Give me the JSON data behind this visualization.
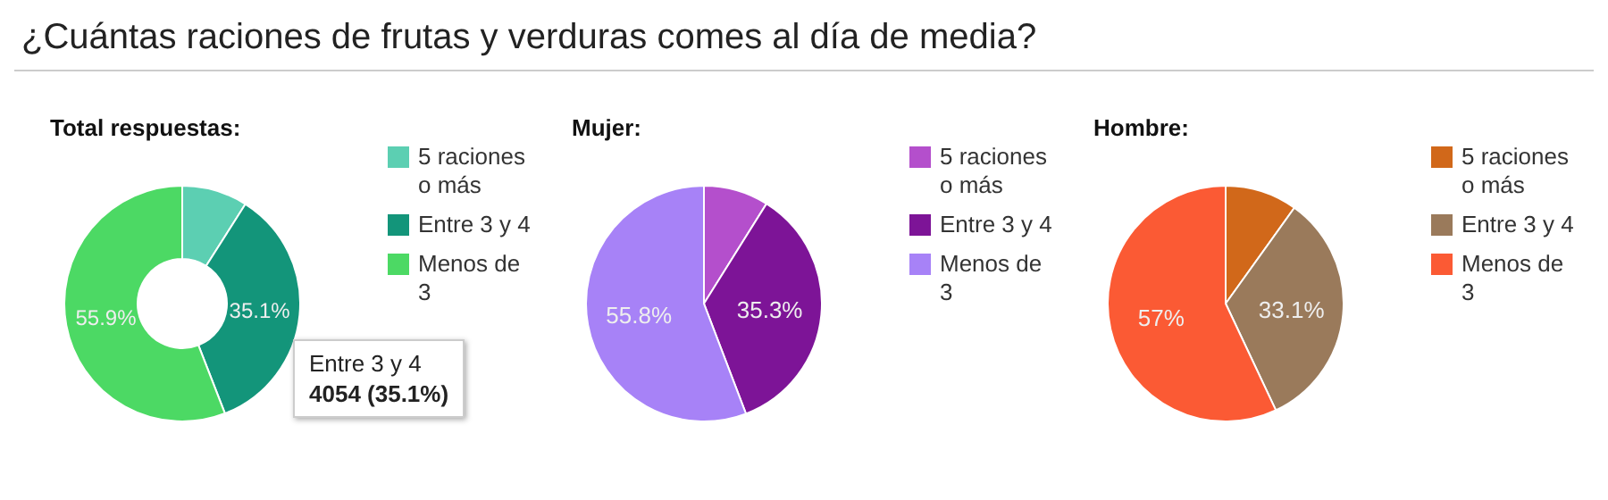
{
  "chart_data": [
    {
      "type": "other",
      "title": "¿Cuántas raciones de frutas y verduras comes al día de media?"
    },
    {
      "type": "donut",
      "title": "Total respuestas:",
      "categories": [
        "5 raciones o más",
        "Entre 3 y 4",
        "Menos de 3"
      ],
      "values": [
        9.0,
        35.1,
        55.9
      ],
      "colors": [
        "#5ccfb2",
        "#13957a",
        "#4cd964"
      ],
      "value_labels": [
        null,
        "35.1%",
        "55.9%"
      ],
      "legend": "right",
      "annotations": [
        "Entre 3 y 4",
        "4054 (35.1%)"
      ]
    },
    {
      "type": "pie",
      "title": "Mujer:",
      "categories": [
        "5 raciones o más",
        "Entre 3 y 4",
        "Menos de 3"
      ],
      "values": [
        8.9,
        35.3,
        55.8
      ],
      "colors": [
        "#b44fcc",
        "#7d1497",
        "#a782f7"
      ],
      "value_labels": [
        null,
        "35.3%",
        "55.8%"
      ],
      "legend": "right"
    },
    {
      "type": "pie",
      "title": "Hombre:",
      "categories": [
        "5 raciones o más",
        "Entre 3 y 4",
        "Menos de 3"
      ],
      "values": [
        9.9,
        33.1,
        57
      ],
      "colors": [
        "#d1681a",
        "#9a7a5b",
        "#fb5a34"
      ],
      "value_labels": [
        null,
        "33.1%",
        "57%"
      ],
      "legend": "right"
    }
  ]
}
